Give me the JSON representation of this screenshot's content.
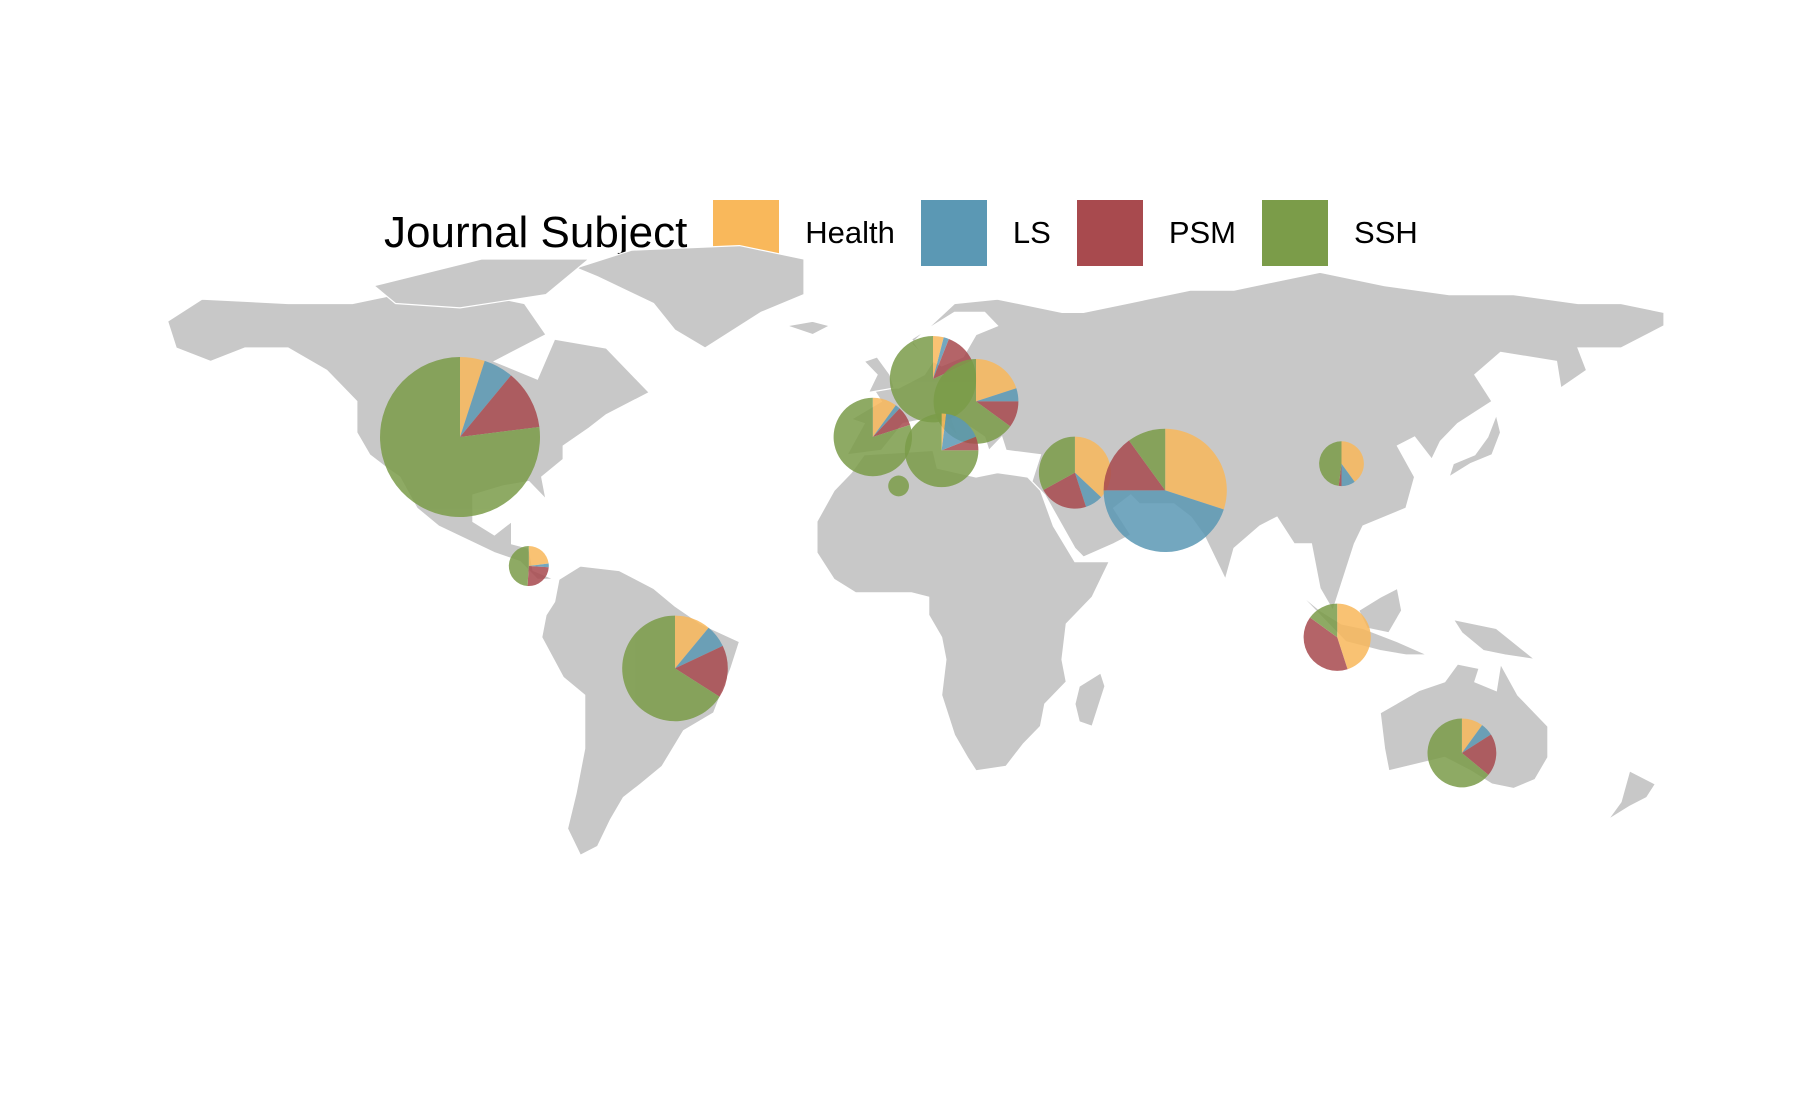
{
  "chart_data": {
    "type": "map",
    "subtype": "pie-chart-map",
    "legend": {
      "title": "Journal Subject",
      "placement": "top",
      "entries": [
        {
          "key": "Health",
          "label": "Health",
          "color": "#F9B85B"
        },
        {
          "key": "LS",
          "label": "LS",
          "color": "#5B98B4"
        },
        {
          "key": "PSM",
          "label": "PSM",
          "color": "#A84A4E"
        },
        {
          "key": "SSH",
          "label": "SSH",
          "color": "#7B9C49"
        }
      ]
    },
    "basemap": {
      "land_color": "#C8C8C8",
      "border_color": "#FFFFFF"
    },
    "categories": [
      "Health",
      "LS",
      "PSM",
      "SSH"
    ],
    "countries": [
      {
        "name": "United States",
        "lat": 40,
        "lon": -100,
        "relative_size": 1.0,
        "shares": [
          0.05,
          0.06,
          0.12,
          0.77
        ]
      },
      {
        "name": "Brazil",
        "lat": -12,
        "lon": -50,
        "relative_size": 0.66,
        "shares": [
          0.11,
          0.07,
          0.16,
          0.66
        ]
      },
      {
        "name": "Central America",
        "lat": 11,
        "lon": -84,
        "relative_size": 0.25,
        "shares": [
          0.23,
          0.03,
          0.25,
          0.49
        ]
      },
      {
        "name": "Spain",
        "lat": 40,
        "lon": -4,
        "relative_size": 0.49,
        "shares": [
          0.1,
          0.02,
          0.08,
          0.8
        ]
      },
      {
        "name": "Germany",
        "lat": 53,
        "lon": 10,
        "relative_size": 0.54,
        "shares": [
          0.04,
          0.02,
          0.12,
          0.82
        ]
      },
      {
        "name": "Poland",
        "lat": 48,
        "lon": 20,
        "relative_size": 0.53,
        "shares": [
          0.2,
          0.05,
          0.1,
          0.65
        ]
      },
      {
        "name": "Italy",
        "lat": 37,
        "lon": 12,
        "relative_size": 0.46,
        "shares": [
          0.02,
          0.17,
          0.06,
          0.75
        ]
      },
      {
        "name": "Algeria",
        "lat": 29,
        "lon": 2,
        "relative_size": 0.13,
        "shares": [
          0.0,
          0.0,
          0.0,
          1.0
        ]
      },
      {
        "name": "Iran",
        "lat": 32,
        "lon": 43,
        "relative_size": 0.45,
        "shares": [
          0.37,
          0.08,
          0.22,
          0.33
        ]
      },
      {
        "name": "India",
        "lat": 28,
        "lon": 64,
        "relative_size": 0.77,
        "shares": [
          0.3,
          0.45,
          0.15,
          0.1
        ]
      },
      {
        "name": "China",
        "lat": 34,
        "lon": 105,
        "relative_size": 0.28,
        "shares": [
          0.4,
          0.1,
          0.02,
          0.48
        ]
      },
      {
        "name": "Indonesia",
        "lat": -5,
        "lon": 104,
        "relative_size": 0.42,
        "shares": [
          0.45,
          0.0,
          0.4,
          0.15
        ]
      },
      {
        "name": "Australia",
        "lat": -31,
        "lon": 133,
        "relative_size": 0.43,
        "shares": [
          0.1,
          0.06,
          0.2,
          0.64
        ]
      }
    ]
  }
}
